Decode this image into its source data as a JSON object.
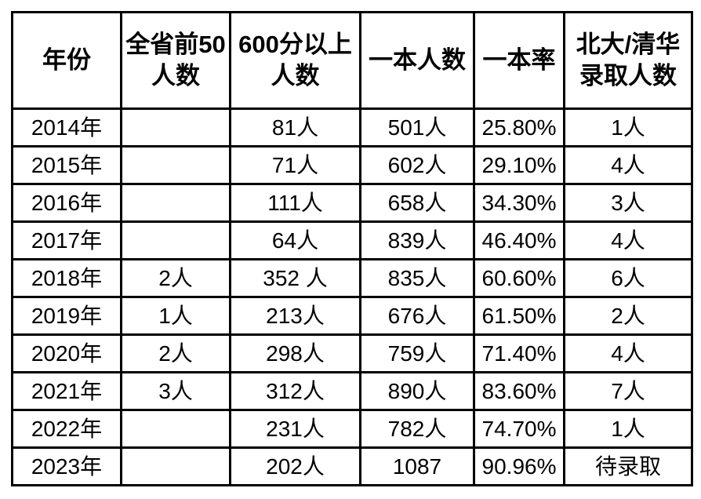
{
  "colors": {
    "border": "#000000",
    "text": "#000000",
    "background": "#ffffff"
  },
  "chart_data": {
    "type": "table",
    "title": "",
    "columns": [
      {
        "label": "年份"
      },
      {
        "label": "全省前50\n人数"
      },
      {
        "label": "600分以上\n人数"
      },
      {
        "label": "一本人数"
      },
      {
        "label": "一本率"
      },
      {
        "label": "北大/清华\n录取人数"
      }
    ],
    "rows": [
      [
        "2014年",
        "",
        "81人",
        "501人",
        "25.80%",
        "1人"
      ],
      [
        "2015年",
        "",
        "71人",
        "602人",
        "29.10%",
        "4人"
      ],
      [
        "2016年",
        "",
        "111人",
        "658人",
        "34.30%",
        "3人"
      ],
      [
        "2017年",
        "",
        "64人",
        "839人",
        "46.40%",
        "4人"
      ],
      [
        "2018年",
        "2人",
        "352 人",
        "835人",
        "60.60%",
        "6人"
      ],
      [
        "2019年",
        "1人",
        "213人",
        "676人",
        "61.50%",
        "2人"
      ],
      [
        "2020年",
        "2人",
        "298人",
        "759人",
        "71.40%",
        "4人"
      ],
      [
        "2021年",
        "3人",
        "312人",
        "890人",
        "83.60%",
        "7人"
      ],
      [
        "2022年",
        "",
        "231人",
        "782人",
        "74.70%",
        "1人"
      ],
      [
        "2023年",
        "",
        "202人",
        "1087",
        "90.96%",
        "待录取"
      ]
    ]
  }
}
